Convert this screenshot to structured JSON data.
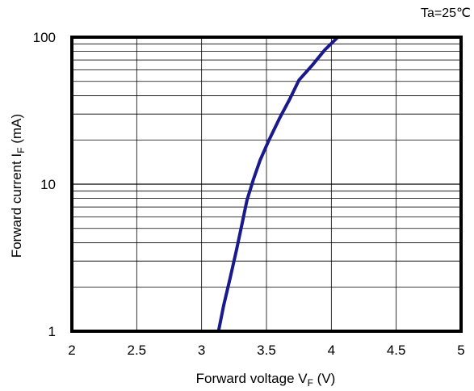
{
  "chart_data": {
    "type": "line",
    "title": "",
    "annotation": "Ta=25℃",
    "xlabel": {
      "main": "Forward voltage V",
      "sub": "F",
      "unit": " (V)"
    },
    "ylabel": {
      "main": "Forward current  I",
      "sub": "F",
      "unit": "  (mA)"
    },
    "xlim": [
      2,
      5
    ],
    "ylim": [
      1,
      100
    ],
    "yscale": "log",
    "grid": true,
    "x_ticks": [
      {
        "value": 2,
        "label": "2"
      },
      {
        "value": 2.5,
        "label": "2.5"
      },
      {
        "value": 3,
        "label": "3"
      },
      {
        "value": 3.5,
        "label": "3.5"
      },
      {
        "value": 4,
        "label": "4"
      },
      {
        "value": 4.5,
        "label": "4.5"
      },
      {
        "value": 5,
        "label": "5"
      }
    ],
    "y_ticks": [
      {
        "value": 1,
        "label": "1"
      },
      {
        "value": 10,
        "label": "10"
      },
      {
        "value": 100,
        "label": "100"
      }
    ],
    "series": [
      {
        "color": "#1a1a8c",
        "x": [
          3.13,
          3.17,
          3.22,
          3.27,
          3.31,
          3.35,
          3.4,
          3.45,
          3.52,
          3.6,
          3.68,
          3.75,
          3.85,
          3.95,
          4.05
        ],
        "y": [
          1.0,
          1.5,
          2.3,
          3.6,
          5.3,
          7.8,
          10.8,
          14.5,
          20.0,
          28.0,
          38.0,
          51.0,
          64.0,
          82.0,
          100.0
        ]
      }
    ]
  }
}
